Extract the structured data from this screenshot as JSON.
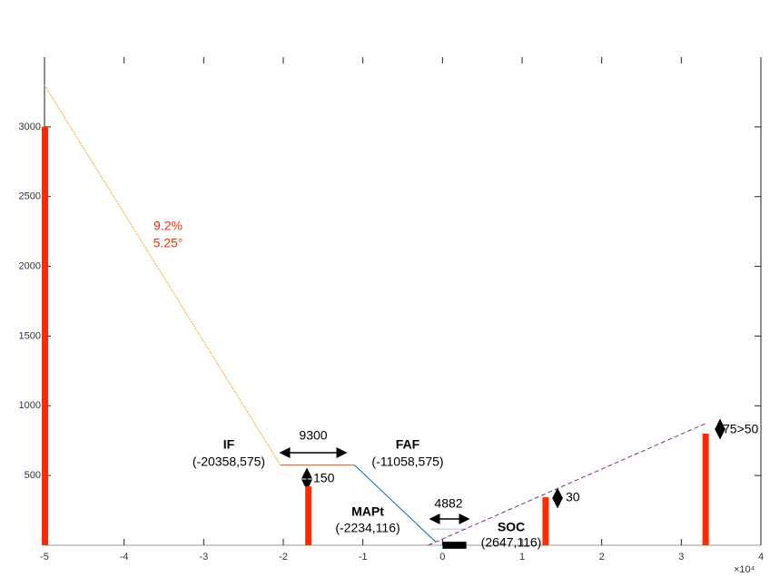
{
  "chart_data": {
    "type": "line",
    "xlim": [
      -5,
      4
    ],
    "xticks": [
      -5,
      -4,
      -3,
      -2,
      -1,
      0,
      1,
      2,
      3,
      4
    ],
    "ylim": [
      0,
      3500
    ],
    "yticks": [
      500,
      1000,
      1500,
      2000,
      2500,
      3000
    ],
    "x_scale": "×10⁴",
    "series": [
      {
        "color": "#edb120",
        "x": [
          -5,
          -2.0358
        ],
        "values": [
          3300,
          575
        ]
      },
      {
        "color": "#d95319",
        "x": [
          -2.0358,
          -1.1058
        ],
        "values": [
          575,
          575
        ]
      },
      {
        "color": "#0072bd",
        "x": [
          -1.1058,
          -0.09
        ],
        "values": [
          575,
          26
        ]
      },
      {
        "color": "#a0c8e0",
        "x": [
          -0.15,
          0.3
        ],
        "values": [
          116,
          116
        ]
      },
      {
        "color": "#7e2f8e",
        "x": [
          -0.18,
          3.32
        ],
        "values": [
          0,
          877
        ]
      }
    ],
    "bars": {
      "color": "#ff2a00",
      "x": [
        -5,
        -1.69,
        1.29,
        3.3
      ],
      "values": [
        3000,
        422,
        344,
        800
      ]
    },
    "runway": {
      "color": "#000000",
      "xrange": [
        0,
        0.3
      ],
      "value": 25
    },
    "annotations": [
      "9.2%",
      "5.25°",
      "IF",
      "(-20358,575)",
      "9300",
      "FAF",
      "(-11058,575)",
      "150",
      "MAPt",
      "(-2234,116)",
      "4882",
      "SOC",
      "(2647,116)",
      "30",
      "75>50"
    ]
  }
}
